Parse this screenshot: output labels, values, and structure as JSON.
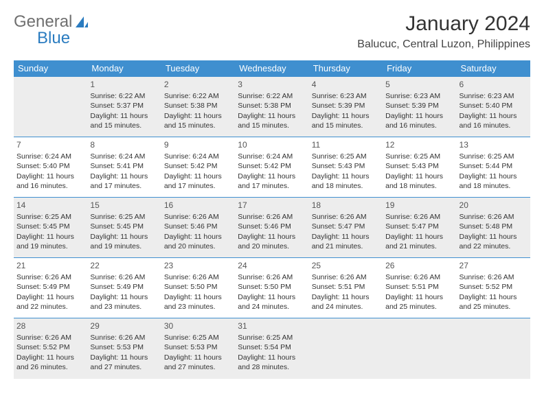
{
  "logo": {
    "part1": "General",
    "part2": "Blue"
  },
  "title": "January 2024",
  "location": "Balucuc, Central Luzon, Philippines",
  "header_bg": "#3f8fcf",
  "header_fg": "#ffffff",
  "shade_bg": "#ededed",
  "border_color": "#3f8fcf",
  "columns": [
    "Sunday",
    "Monday",
    "Tuesday",
    "Wednesday",
    "Thursday",
    "Friday",
    "Saturday"
  ],
  "weeks": [
    [
      {
        "day": "",
        "lines": []
      },
      {
        "day": "1",
        "lines": [
          "Sunrise: 6:22 AM",
          "Sunset: 5:37 PM",
          "Daylight: 11 hours and 15 minutes."
        ]
      },
      {
        "day": "2",
        "lines": [
          "Sunrise: 6:22 AM",
          "Sunset: 5:38 PM",
          "Daylight: 11 hours and 15 minutes."
        ]
      },
      {
        "day": "3",
        "lines": [
          "Sunrise: 6:22 AM",
          "Sunset: 5:38 PM",
          "Daylight: 11 hours and 15 minutes."
        ]
      },
      {
        "day": "4",
        "lines": [
          "Sunrise: 6:23 AM",
          "Sunset: 5:39 PM",
          "Daylight: 11 hours and 15 minutes."
        ]
      },
      {
        "day": "5",
        "lines": [
          "Sunrise: 6:23 AM",
          "Sunset: 5:39 PM",
          "Daylight: 11 hours and 16 minutes."
        ]
      },
      {
        "day": "6",
        "lines": [
          "Sunrise: 6:23 AM",
          "Sunset: 5:40 PM",
          "Daylight: 11 hours and 16 minutes."
        ]
      }
    ],
    [
      {
        "day": "7",
        "lines": [
          "Sunrise: 6:24 AM",
          "Sunset: 5:40 PM",
          "Daylight: 11 hours and 16 minutes."
        ]
      },
      {
        "day": "8",
        "lines": [
          "Sunrise: 6:24 AM",
          "Sunset: 5:41 PM",
          "Daylight: 11 hours and 17 minutes."
        ]
      },
      {
        "day": "9",
        "lines": [
          "Sunrise: 6:24 AM",
          "Sunset: 5:42 PM",
          "Daylight: 11 hours and 17 minutes."
        ]
      },
      {
        "day": "10",
        "lines": [
          "Sunrise: 6:24 AM",
          "Sunset: 5:42 PM",
          "Daylight: 11 hours and 17 minutes."
        ]
      },
      {
        "day": "11",
        "lines": [
          "Sunrise: 6:25 AM",
          "Sunset: 5:43 PM",
          "Daylight: 11 hours and 18 minutes."
        ]
      },
      {
        "day": "12",
        "lines": [
          "Sunrise: 6:25 AM",
          "Sunset: 5:43 PM",
          "Daylight: 11 hours and 18 minutes."
        ]
      },
      {
        "day": "13",
        "lines": [
          "Sunrise: 6:25 AM",
          "Sunset: 5:44 PM",
          "Daylight: 11 hours and 18 minutes."
        ]
      }
    ],
    [
      {
        "day": "14",
        "lines": [
          "Sunrise: 6:25 AM",
          "Sunset: 5:45 PM",
          "Daylight: 11 hours and 19 minutes."
        ]
      },
      {
        "day": "15",
        "lines": [
          "Sunrise: 6:25 AM",
          "Sunset: 5:45 PM",
          "Daylight: 11 hours and 19 minutes."
        ]
      },
      {
        "day": "16",
        "lines": [
          "Sunrise: 6:26 AM",
          "Sunset: 5:46 PM",
          "Daylight: 11 hours and 20 minutes."
        ]
      },
      {
        "day": "17",
        "lines": [
          "Sunrise: 6:26 AM",
          "Sunset: 5:46 PM",
          "Daylight: 11 hours and 20 minutes."
        ]
      },
      {
        "day": "18",
        "lines": [
          "Sunrise: 6:26 AM",
          "Sunset: 5:47 PM",
          "Daylight: 11 hours and 21 minutes."
        ]
      },
      {
        "day": "19",
        "lines": [
          "Sunrise: 6:26 AM",
          "Sunset: 5:47 PM",
          "Daylight: 11 hours and 21 minutes."
        ]
      },
      {
        "day": "20",
        "lines": [
          "Sunrise: 6:26 AM",
          "Sunset: 5:48 PM",
          "Daylight: 11 hours and 22 minutes."
        ]
      }
    ],
    [
      {
        "day": "21",
        "lines": [
          "Sunrise: 6:26 AM",
          "Sunset: 5:49 PM",
          "Daylight: 11 hours and 22 minutes."
        ]
      },
      {
        "day": "22",
        "lines": [
          "Sunrise: 6:26 AM",
          "Sunset: 5:49 PM",
          "Daylight: 11 hours and 23 minutes."
        ]
      },
      {
        "day": "23",
        "lines": [
          "Sunrise: 6:26 AM",
          "Sunset: 5:50 PM",
          "Daylight: 11 hours and 23 minutes."
        ]
      },
      {
        "day": "24",
        "lines": [
          "Sunrise: 6:26 AM",
          "Sunset: 5:50 PM",
          "Daylight: 11 hours and 24 minutes."
        ]
      },
      {
        "day": "25",
        "lines": [
          "Sunrise: 6:26 AM",
          "Sunset: 5:51 PM",
          "Daylight: 11 hours and 24 minutes."
        ]
      },
      {
        "day": "26",
        "lines": [
          "Sunrise: 6:26 AM",
          "Sunset: 5:51 PM",
          "Daylight: 11 hours and 25 minutes."
        ]
      },
      {
        "day": "27",
        "lines": [
          "Sunrise: 6:26 AM",
          "Sunset: 5:52 PM",
          "Daylight: 11 hours and 25 minutes."
        ]
      }
    ],
    [
      {
        "day": "28",
        "lines": [
          "Sunrise: 6:26 AM",
          "Sunset: 5:52 PM",
          "Daylight: 11 hours and 26 minutes."
        ]
      },
      {
        "day": "29",
        "lines": [
          "Sunrise: 6:26 AM",
          "Sunset: 5:53 PM",
          "Daylight: 11 hours and 27 minutes."
        ]
      },
      {
        "day": "30",
        "lines": [
          "Sunrise: 6:25 AM",
          "Sunset: 5:53 PM",
          "Daylight: 11 hours and 27 minutes."
        ]
      },
      {
        "day": "31",
        "lines": [
          "Sunrise: 6:25 AM",
          "Sunset: 5:54 PM",
          "Daylight: 11 hours and 28 minutes."
        ]
      },
      {
        "day": "",
        "lines": []
      },
      {
        "day": "",
        "lines": []
      },
      {
        "day": "",
        "lines": []
      }
    ]
  ]
}
